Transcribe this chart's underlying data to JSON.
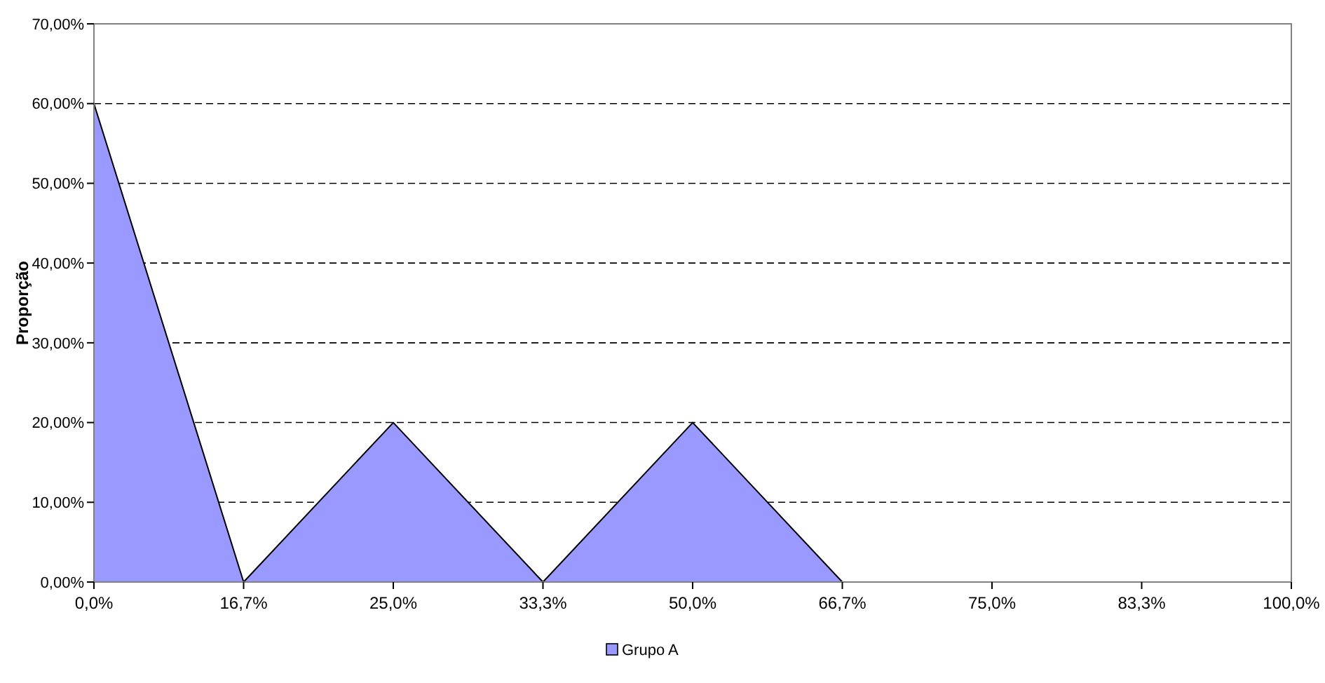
{
  "chart_data": {
    "type": "area",
    "ylabel": "Proporção",
    "categories": [
      "0,0%",
      "16,7%",
      "25,0%",
      "33,3%",
      "50,0%",
      "66,7%",
      "75,0%",
      "83,3%",
      "100,0%"
    ],
    "series": [
      {
        "name": "Grupo A",
        "color": "#9999ff",
        "values": [
          60,
          0,
          20,
          0,
          20,
          0,
          0,
          0,
          0
        ]
      }
    ],
    "ylim": [
      0,
      70
    ],
    "yticks": [
      {
        "value": 0,
        "label": "0,00%"
      },
      {
        "value": 10,
        "label": "10,00%"
      },
      {
        "value": 20,
        "label": "20,00%"
      },
      {
        "value": 30,
        "label": "30,00%"
      },
      {
        "value": 40,
        "label": "40,00%"
      },
      {
        "value": 50,
        "label": "50,00%"
      },
      {
        "value": 60,
        "label": "60,00%"
      },
      {
        "value": 70,
        "label": "70,00%"
      }
    ],
    "grid": "y",
    "legend": "bottom"
  }
}
